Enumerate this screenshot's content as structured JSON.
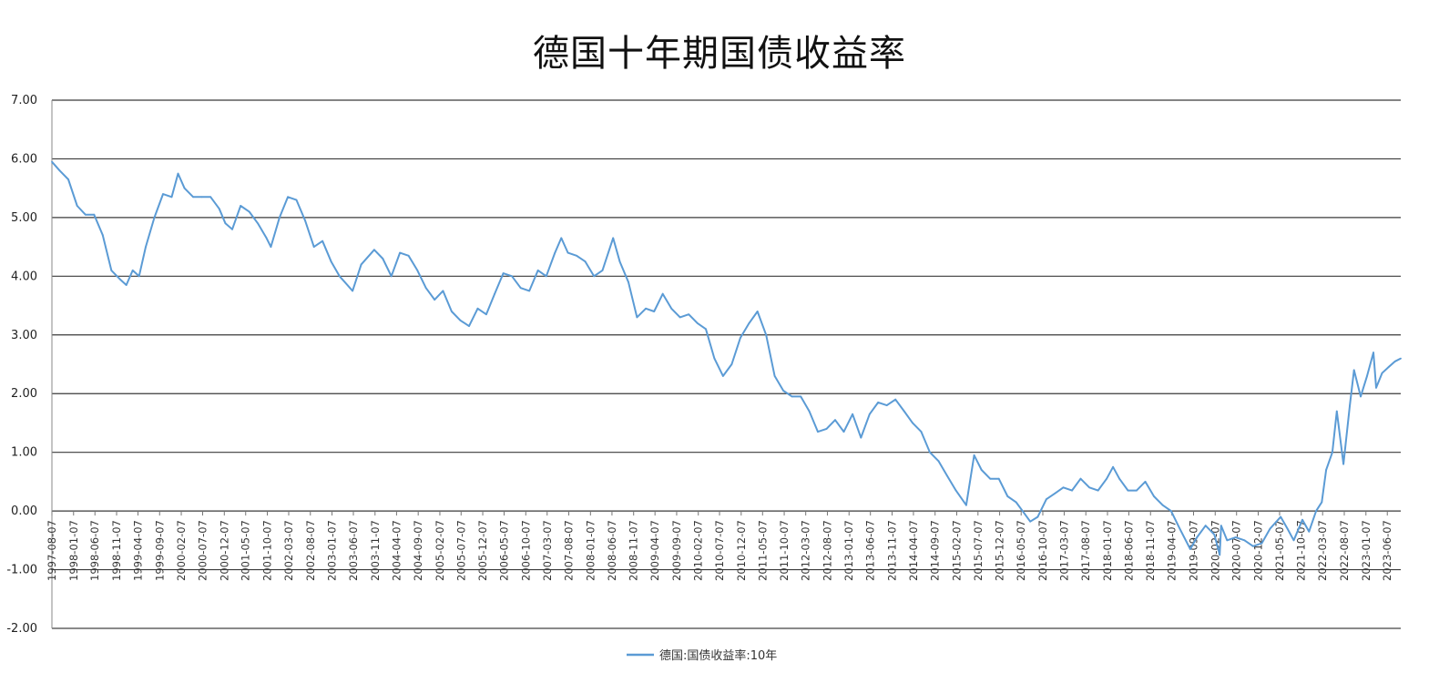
{
  "chart_data": {
    "type": "line",
    "title": "德国十年期国债收益率",
    "xlabel": "",
    "ylabel": "",
    "ylim": [
      -2,
      7
    ],
    "yticks": [
      "7.00",
      "6.00",
      "5.00",
      "4.00",
      "3.00",
      "2.00",
      "1.00",
      "0.00",
      "-1.00",
      "-2.00"
    ],
    "grid": true,
    "legend_position": "bottom",
    "x_tick_labels": [
      "1997-08-07",
      "1998-01-07",
      "1998-06-07",
      "1998-11-07",
      "1999-04-07",
      "1999-09-07",
      "2000-02-07",
      "2000-07-07",
      "2000-12-07",
      "2001-05-07",
      "2001-10-07",
      "2002-03-07",
      "2002-08-07",
      "2003-01-07",
      "2003-06-07",
      "2003-11-07",
      "2004-04-07",
      "2004-09-07",
      "2005-02-07",
      "2005-07-07",
      "2005-12-07",
      "2006-05-07",
      "2006-10-07",
      "2007-03-07",
      "2007-08-07",
      "2008-01-07",
      "2008-06-07",
      "2008-11-07",
      "2009-04-07",
      "2009-09-07",
      "2010-02-07",
      "2010-07-07",
      "2010-12-07",
      "2011-05-07",
      "2011-10-07",
      "2012-03-07",
      "2012-08-07",
      "2013-01-07",
      "2013-06-07",
      "2013-11-07",
      "2014-04-07",
      "2014-09-07",
      "2015-02-07",
      "2015-07-07",
      "2015-12-07",
      "2016-05-07",
      "2016-10-07",
      "2017-03-07",
      "2017-08-07",
      "2018-01-07",
      "2018-06-07",
      "2018-11-07",
      "2019-04-07",
      "2019-09-07",
      "2020-02-07",
      "2020-07-07",
      "2020-12-07",
      "2021-05-07",
      "2021-10-07",
      "2022-03-07",
      "2022-08-07",
      "2023-01-07",
      "2023-06-07"
    ],
    "series": [
      {
        "name": "德国:国债收益率:10年",
        "color": "#5b9bd5",
        "points": [
          [
            "1997-08-07",
            5.95
          ],
          [
            "1997-10-01",
            5.8
          ],
          [
            "1997-12-01",
            5.65
          ],
          [
            "1998-02-01",
            5.2
          ],
          [
            "1998-04-01",
            5.05
          ],
          [
            "1998-06-01",
            5.05
          ],
          [
            "1998-08-01",
            4.7
          ],
          [
            "1998-10-01",
            4.1
          ],
          [
            "1998-12-01",
            3.95
          ],
          [
            "1999-01-15",
            3.85
          ],
          [
            "1999-03-01",
            4.1
          ],
          [
            "1999-04-15",
            4.0
          ],
          [
            "1999-06-01",
            4.5
          ],
          [
            "1999-08-01",
            5.0
          ],
          [
            "1999-10-01",
            5.4
          ],
          [
            "1999-12-01",
            5.35
          ],
          [
            "2000-01-15",
            5.75
          ],
          [
            "2000-03-01",
            5.5
          ],
          [
            "2000-05-01",
            5.35
          ],
          [
            "2000-07-01",
            5.35
          ],
          [
            "2000-09-01",
            5.35
          ],
          [
            "2000-11-01",
            5.15
          ],
          [
            "2000-12-15",
            4.9
          ],
          [
            "2001-02-01",
            4.8
          ],
          [
            "2001-04-01",
            5.2
          ],
          [
            "2001-06-01",
            5.1
          ],
          [
            "2001-08-01",
            4.9
          ],
          [
            "2001-10-01",
            4.65
          ],
          [
            "2001-11-01",
            4.5
          ],
          [
            "2002-01-01",
            5.0
          ],
          [
            "2002-03-01",
            5.35
          ],
          [
            "2002-05-01",
            5.3
          ],
          [
            "2002-07-01",
            4.95
          ],
          [
            "2002-09-01",
            4.5
          ],
          [
            "2002-11-01",
            4.6
          ],
          [
            "2003-01-01",
            4.25
          ],
          [
            "2003-03-01",
            4.0
          ],
          [
            "2003-06-01",
            3.75
          ],
          [
            "2003-08-01",
            4.2
          ],
          [
            "2003-11-01",
            4.45
          ],
          [
            "2004-01-01",
            4.3
          ],
          [
            "2004-03-01",
            4.0
          ],
          [
            "2004-05-01",
            4.4
          ],
          [
            "2004-07-01",
            4.35
          ],
          [
            "2004-09-01",
            4.1
          ],
          [
            "2004-11-01",
            3.8
          ],
          [
            "2005-01-01",
            3.6
          ],
          [
            "2005-03-01",
            3.75
          ],
          [
            "2005-05-01",
            3.4
          ],
          [
            "2005-07-01",
            3.25
          ],
          [
            "2005-09-01",
            3.15
          ],
          [
            "2005-11-01",
            3.45
          ],
          [
            "2006-01-01",
            3.35
          ],
          [
            "2006-03-01",
            3.7
          ],
          [
            "2006-05-01",
            4.05
          ],
          [
            "2006-07-01",
            4.0
          ],
          [
            "2006-09-01",
            3.8
          ],
          [
            "2006-11-01",
            3.75
          ],
          [
            "2007-01-01",
            4.1
          ],
          [
            "2007-03-01",
            4.0
          ],
          [
            "2007-05-01",
            4.4
          ],
          [
            "2007-06-15",
            4.65
          ],
          [
            "2007-08-01",
            4.4
          ],
          [
            "2007-10-01",
            4.35
          ],
          [
            "2007-12-01",
            4.25
          ],
          [
            "2008-02-01",
            4.0
          ],
          [
            "2008-04-01",
            4.1
          ],
          [
            "2008-06-15",
            4.65
          ],
          [
            "2008-08-01",
            4.25
          ],
          [
            "2008-10-01",
            3.9
          ],
          [
            "2008-12-01",
            3.3
          ],
          [
            "2009-02-01",
            3.45
          ],
          [
            "2009-04-01",
            3.4
          ],
          [
            "2009-06-01",
            3.7
          ],
          [
            "2009-08-01",
            3.45
          ],
          [
            "2009-10-01",
            3.3
          ],
          [
            "2009-12-01",
            3.35
          ],
          [
            "2010-02-01",
            3.2
          ],
          [
            "2010-04-01",
            3.1
          ],
          [
            "2010-06-01",
            2.6
          ],
          [
            "2010-08-01",
            2.3
          ],
          [
            "2010-10-01",
            2.5
          ],
          [
            "2010-12-01",
            2.95
          ],
          [
            "2011-02-01",
            3.2
          ],
          [
            "2011-04-01",
            3.4
          ],
          [
            "2011-06-01",
            3.0
          ],
          [
            "2011-08-01",
            2.3
          ],
          [
            "2011-10-01",
            2.05
          ],
          [
            "2011-12-01",
            1.95
          ],
          [
            "2012-02-01",
            1.95
          ],
          [
            "2012-04-01",
            1.7
          ],
          [
            "2012-06-01",
            1.35
          ],
          [
            "2012-08-01",
            1.4
          ],
          [
            "2012-10-01",
            1.55
          ],
          [
            "2012-12-01",
            1.35
          ],
          [
            "2013-02-01",
            1.65
          ],
          [
            "2013-04-01",
            1.25
          ],
          [
            "2013-06-01",
            1.65
          ],
          [
            "2013-08-01",
            1.85
          ],
          [
            "2013-10-01",
            1.8
          ],
          [
            "2013-12-01",
            1.9
          ],
          [
            "2014-02-01",
            1.7
          ],
          [
            "2014-04-01",
            1.5
          ],
          [
            "2014-06-01",
            1.35
          ],
          [
            "2014-08-01",
            1.0
          ],
          [
            "2014-10-01",
            0.85
          ],
          [
            "2014-12-01",
            0.6
          ],
          [
            "2015-02-01",
            0.35
          ],
          [
            "2015-04-15",
            0.1
          ],
          [
            "2015-06-10",
            0.95
          ],
          [
            "2015-08-01",
            0.7
          ],
          [
            "2015-10-01",
            0.55
          ],
          [
            "2015-12-01",
            0.55
          ],
          [
            "2016-02-01",
            0.25
          ],
          [
            "2016-04-01",
            0.15
          ],
          [
            "2016-06-01",
            -0.05
          ],
          [
            "2016-07-10",
            -0.18
          ],
          [
            "2016-09-01",
            -0.1
          ],
          [
            "2016-11-01",
            0.2
          ],
          [
            "2017-01-01",
            0.3
          ],
          [
            "2017-03-01",
            0.4
          ],
          [
            "2017-05-01",
            0.35
          ],
          [
            "2017-07-01",
            0.55
          ],
          [
            "2017-09-01",
            0.4
          ],
          [
            "2017-11-01",
            0.35
          ],
          [
            "2018-01-01",
            0.55
          ],
          [
            "2018-02-15",
            0.75
          ],
          [
            "2018-04-01",
            0.55
          ],
          [
            "2018-06-01",
            0.35
          ],
          [
            "2018-08-01",
            0.35
          ],
          [
            "2018-10-01",
            0.5
          ],
          [
            "2018-12-01",
            0.25
          ],
          [
            "2019-02-01",
            0.1
          ],
          [
            "2019-04-01",
            0.0
          ],
          [
            "2019-06-01",
            -0.3
          ],
          [
            "2019-08-15",
            -0.65
          ],
          [
            "2019-10-01",
            -0.45
          ],
          [
            "2019-12-01",
            -0.25
          ],
          [
            "2020-02-01",
            -0.4
          ],
          [
            "2020-03-10",
            -0.75
          ],
          [
            "2020-03-20",
            -0.25
          ],
          [
            "2020-05-01",
            -0.5
          ],
          [
            "2020-07-01",
            -0.45
          ],
          [
            "2020-09-01",
            -0.5
          ],
          [
            "2020-11-01",
            -0.6
          ],
          [
            "2021-01-01",
            -0.55
          ],
          [
            "2021-03-01",
            -0.3
          ],
          [
            "2021-05-15",
            -0.1
          ],
          [
            "2021-07-01",
            -0.3
          ],
          [
            "2021-08-15",
            -0.5
          ],
          [
            "2021-10-15",
            -0.15
          ],
          [
            "2021-12-01",
            -0.35
          ],
          [
            "2022-01-20",
            0.0
          ],
          [
            "2022-03-01",
            0.15
          ],
          [
            "2022-04-01",
            0.7
          ],
          [
            "2022-05-15",
            1.0
          ],
          [
            "2022-06-15",
            1.7
          ],
          [
            "2022-08-01",
            0.8
          ],
          [
            "2022-09-15",
            1.8
          ],
          [
            "2022-10-15",
            2.4
          ],
          [
            "2022-12-01",
            1.95
          ],
          [
            "2023-01-15",
            2.3
          ],
          [
            "2023-03-01",
            2.7
          ],
          [
            "2023-03-20",
            2.1
          ],
          [
            "2023-05-01",
            2.35
          ],
          [
            "2023-06-15",
            2.45
          ],
          [
            "2023-08-01",
            2.55
          ],
          [
            "2023-09-10",
            2.6
          ]
        ]
      }
    ]
  }
}
